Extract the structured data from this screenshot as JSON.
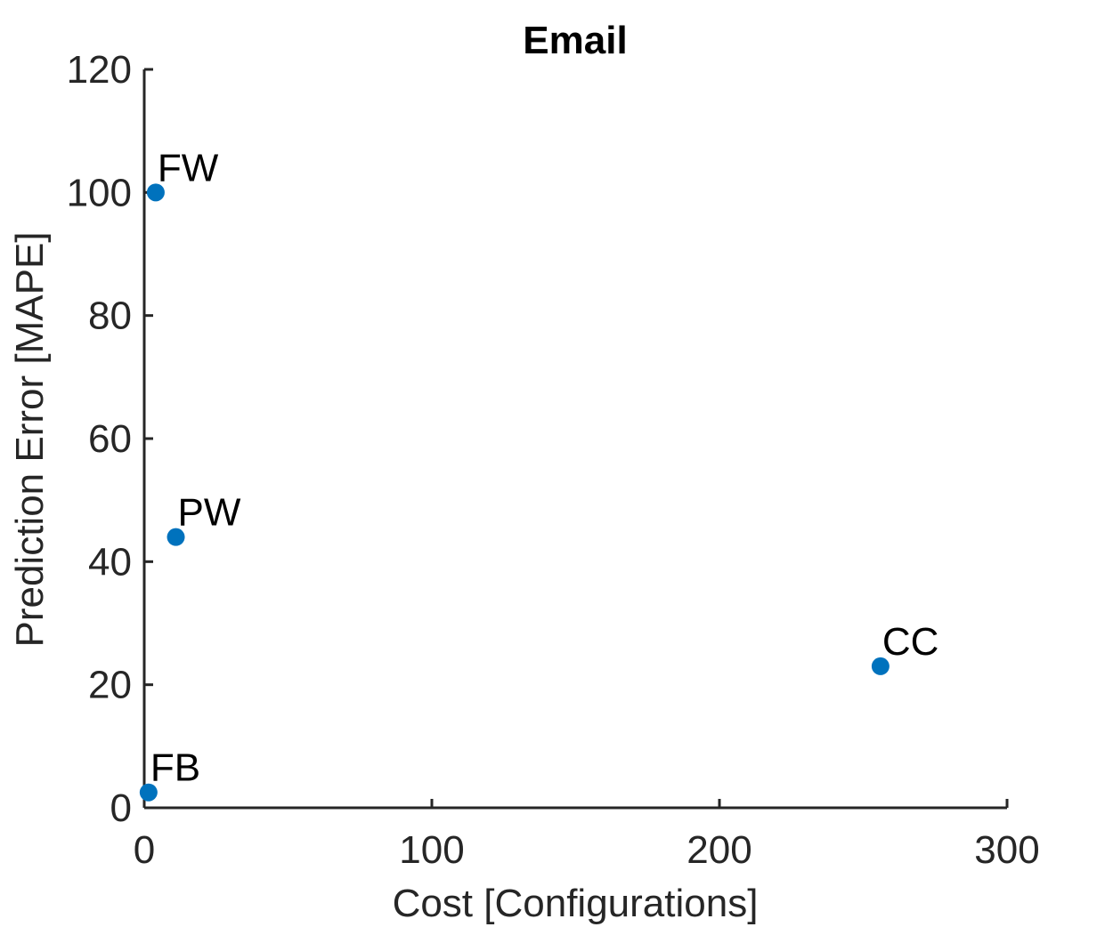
{
  "chart_data": {
    "type": "scatter",
    "title": "Email",
    "xlabel": "Cost [Configurations]",
    "ylabel": "Prediction Error [MAPE]",
    "xlim": [
      0,
      300
    ],
    "ylim": [
      0,
      120
    ],
    "xticks": [
      0,
      100,
      200,
      300
    ],
    "yticks": [
      0,
      20,
      40,
      60,
      80,
      100,
      120
    ],
    "grid": false,
    "marker_color": "#0072BD",
    "points": [
      {
        "label": "FW",
        "x": 4,
        "y": 100
      },
      {
        "label": "PW",
        "x": 11,
        "y": 44
      },
      {
        "label": "CC",
        "x": 256,
        "y": 23
      },
      {
        "label": "FB",
        "x": 1.5,
        "y": 2.5
      }
    ]
  }
}
